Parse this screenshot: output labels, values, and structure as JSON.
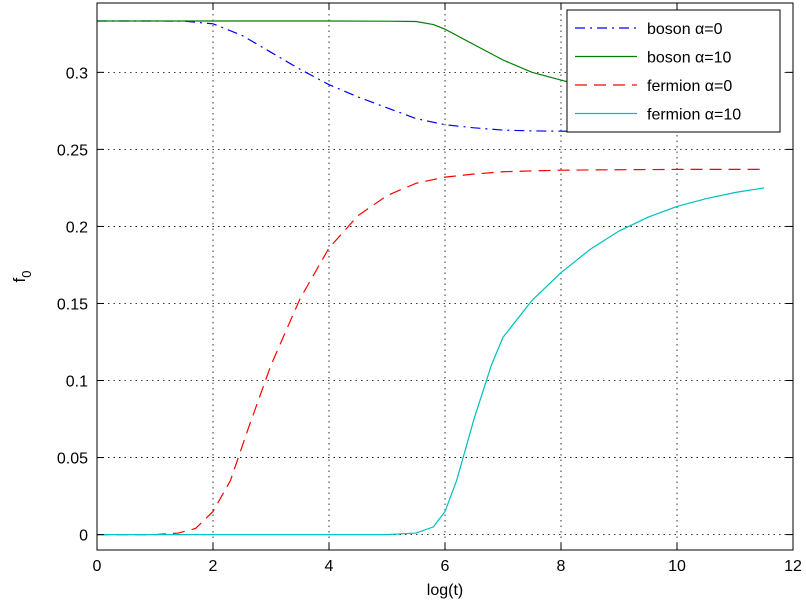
{
  "chart_data": {
    "type": "line",
    "title": "",
    "xlabel": "log(t)",
    "ylabel": "f",
    "ylabel_subscript": "0",
    "xlim": [
      0,
      12
    ],
    "ylim": [
      -0.01,
      0.345
    ],
    "x_ticks": [
      0,
      2,
      4,
      6,
      8,
      10,
      12
    ],
    "x_tick_labels": [
      "0",
      "2",
      "4",
      "6",
      "8",
      "10",
      "12"
    ],
    "y_ticks": [
      0,
      0.05,
      0.1,
      0.15,
      0.2,
      0.25,
      0.3
    ],
    "y_tick_labels": [
      "0",
      "0.05",
      "0.1",
      "0.15",
      "0.2",
      "0.25",
      "0.3"
    ],
    "grid": true,
    "legend_position": "top-right",
    "series": [
      {
        "name": "boson α=0",
        "color": "#0000ff",
        "dash": "dashdot",
        "x": [
          0,
          1,
          1.5,
          2,
          2.5,
          3,
          3.5,
          4,
          4.5,
          5,
          5.5,
          6,
          6.5,
          7,
          7.5,
          8,
          8.5,
          9,
          9.5,
          10,
          10.5,
          11,
          11.5
        ],
        "y": [
          0.3333,
          0.3333,
          0.3332,
          0.3315,
          0.324,
          0.313,
          0.302,
          0.292,
          0.284,
          0.277,
          0.27,
          0.266,
          0.264,
          0.2625,
          0.262,
          0.2618,
          0.2617,
          0.2617,
          0.2617,
          0.2617,
          0.2617,
          0.2617,
          0.2617
        ]
      },
      {
        "name": "boson α=10",
        "color": "#008000",
        "dash": "solid",
        "x": [
          0,
          1,
          2,
          3,
          4,
          5,
          5.5,
          5.8,
          6,
          6.5,
          7,
          7.5,
          8,
          8.5,
          9,
          9.5,
          10,
          10.5,
          11,
          11.5
        ],
        "y": [
          0.3333,
          0.3333,
          0.3333,
          0.3333,
          0.3333,
          0.3332,
          0.333,
          0.331,
          0.328,
          0.318,
          0.308,
          0.3,
          0.295,
          0.29,
          0.285,
          0.282,
          0.28,
          0.279,
          0.278,
          0.278
        ]
      },
      {
        "name": "fermion α=0",
        "color": "#ff0000",
        "dash": "dash",
        "x": [
          0,
          1,
          1.4,
          1.7,
          2,
          2.3,
          2.6,
          3,
          3.5,
          4,
          4.5,
          5,
          5.5,
          6,
          6.5,
          7,
          7.5,
          8,
          9,
          10,
          11,
          11.5
        ],
        "y": [
          0,
          0,
          0.001,
          0.004,
          0.015,
          0.035,
          0.068,
          0.11,
          0.153,
          0.186,
          0.207,
          0.22,
          0.228,
          0.232,
          0.234,
          0.2355,
          0.236,
          0.2365,
          0.2368,
          0.237,
          0.237,
          0.237
        ]
      },
      {
        "name": "fermion α=10",
        "color": "#00bfbf",
        "dash": "solid",
        "x": [
          0,
          1,
          2,
          3,
          4,
          5,
          5.5,
          5.8,
          6,
          6.2,
          6.5,
          6.8,
          7,
          7.5,
          8,
          8.5,
          9,
          9.5,
          10,
          10.5,
          11,
          11.5
        ],
        "y": [
          0,
          0,
          0,
          0,
          0,
          0,
          0.001,
          0.005,
          0.015,
          0.035,
          0.075,
          0.11,
          0.128,
          0.152,
          0.17,
          0.185,
          0.197,
          0.206,
          0.213,
          0.218,
          0.222,
          0.225
        ]
      }
    ]
  }
}
